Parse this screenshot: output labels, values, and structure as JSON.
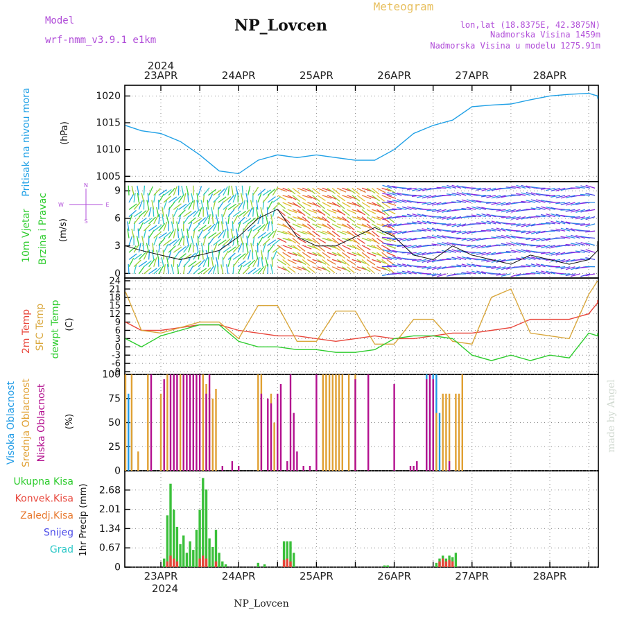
{
  "header": {
    "model_label": "Model",
    "model_name": "wrf-nmm_v3.9.1 e1km",
    "station_title": "NP_Lovcen",
    "meteogram_label": "Meteogram",
    "lonlat": "lon,lat (18.8375E, 42.3875N)",
    "altitude": "Nadmorska Visina 1459m",
    "model_altitude": "Nadmorska Visina u modelu 1275.91m",
    "year": "2024",
    "watermark": "made by Angel",
    "footer_station": "NP_Lovcen"
  },
  "dates": [
    "23APR",
    "24APR",
    "25APR",
    "26APR",
    "27APR",
    "28APR"
  ],
  "colors": {
    "pressure": "#1fa0e6",
    "t2m": "#e8453a",
    "sfc": "#d9a73c",
    "dewpt": "#2ecc2e",
    "cloud_high": "#1f9be6",
    "cloud_mid": "#e0a032",
    "cloud_low": "#b3108f",
    "precip_total": "#3ac03a",
    "precip_conv": "#e8453a"
  },
  "panels": {
    "pressure": {
      "label1": "Pritisak na nivou mora",
      "label2": "(hPa)",
      "ticks": [
        "1005",
        "1010",
        "1015",
        "1020"
      ]
    },
    "wind": {
      "label1": "10m Vjetar",
      "label2": "Brzina i Pravac",
      "label3": "(m/s)",
      "ticks": [
        "0",
        "3",
        "6",
        "9"
      ],
      "compass_n": "N",
      "compass_w": "W",
      "compass_e": "E",
      "compass_s": "S"
    },
    "temp": {
      "label1": "2m Temp",
      "label2": "SFC Temp",
      "label3": "dewpt Temp",
      "label4": "(C)",
      "ticks": [
        "-9",
        "-6",
        "-3",
        "0",
        "3",
        "6",
        "9",
        "12",
        "15",
        "18",
        "21",
        "24"
      ]
    },
    "cloud": {
      "label1": "Visoka Oblacnost",
      "label2": "Srednja Oblacnost",
      "label3": "Niska Oblacnost",
      "label4": "(%)",
      "ticks": [
        "0",
        "25",
        "50",
        "75",
        "100"
      ]
    },
    "precip": {
      "legend": [
        "Ukupna Kisa",
        "Konvek.Kisa",
        "Zaledj.Kisa",
        "Snijeg",
        "Grad"
      ],
      "legend_colors": [
        "#2ecc2e",
        "#e8453a",
        "#e87a30",
        "#4a4ae8",
        "#2ec8c8"
      ],
      "ylabel": "1hr Precip (mm)",
      "ticks": [
        "0",
        "0.67",
        "1.34",
        "2.01",
        "2.68"
      ]
    }
  },
  "chart_data": [
    {
      "type": "line",
      "title": "Pritisak na nivou mora",
      "ylabel": "(hPa)",
      "ylim": [
        1004,
        1022
      ],
      "x_unit": "hours from 23APR 00UTC",
      "series": [
        {
          "name": "Pritisak na nivou mora",
          "x": [
            -12,
            -6,
            0,
            6,
            12,
            18,
            24,
            30,
            36,
            42,
            48,
            54,
            60,
            66,
            72,
            78,
            84,
            90,
            96,
            102,
            108,
            114,
            120,
            126,
            132,
            138,
            140
          ],
          "values": [
            1014.5,
            1013.5,
            1013,
            1011.5,
            1009,
            1006,
            1005.5,
            1008,
            1009,
            1008.5,
            1009,
            1008.5,
            1008,
            1008,
            1010,
            1013,
            1014.5,
            1015.5,
            1018,
            1018.3,
            1018.5,
            1019.3,
            1020,
            1020.3,
            1020.5,
            1020,
            1019.5
          ]
        }
      ]
    },
    {
      "type": "line",
      "title": "10m Vjetar Brzina i Pravac",
      "ylabel": "(m/s)",
      "ylim": [
        -0.5,
        10
      ],
      "x_unit": "hours from 23APR 00UTC",
      "series": [
        {
          "name": "10m Vjetar",
          "x": [
            -12,
            -6,
            0,
            6,
            12,
            18,
            24,
            30,
            36,
            42,
            48,
            54,
            60,
            66,
            72,
            78,
            84,
            90,
            96,
            102,
            108,
            114,
            120,
            126,
            132,
            138,
            140
          ],
          "values": [
            3,
            2.5,
            2,
            1.5,
            2,
            2.5,
            4,
            6,
            7,
            4,
            3,
            3,
            4,
            5,
            4,
            2,
            1.5,
            3,
            2,
            1.5,
            1,
            2,
            1.5,
            1,
            1.5,
            2.5,
            3.5
          ]
        }
      ]
    },
    {
      "type": "line",
      "title": "2m Temp / SFC Temp / dewpt Temp",
      "ylabel": "(C)",
      "ylim": [
        -10,
        25
      ],
      "x_unit": "hours from 23APR 00UTC",
      "series": [
        {
          "name": "2m Temp",
          "x": [
            -12,
            -6,
            0,
            6,
            12,
            18,
            24,
            30,
            36,
            42,
            48,
            54,
            60,
            66,
            72,
            78,
            84,
            90,
            96,
            102,
            108,
            114,
            120,
            126,
            132,
            138,
            140
          ],
          "values": [
            9,
            6,
            6,
            7,
            8,
            8,
            6,
            5,
            4,
            4,
            3,
            2,
            3,
            4,
            3,
            3,
            4,
            5,
            5,
            6,
            7,
            10,
            10,
            10,
            12,
            16,
            17
          ]
        },
        {
          "name": "SFC Temp",
          "x": [
            -12,
            -6,
            0,
            6,
            12,
            18,
            24,
            30,
            36,
            42,
            48,
            54,
            60,
            66,
            72,
            78,
            84,
            90,
            96,
            102,
            108,
            114,
            120,
            126,
            132,
            138,
            140
          ],
          "values": [
            20,
            6,
            5,
            7,
            9,
            9,
            3,
            15,
            15,
            2,
            2,
            13,
            13,
            1,
            1,
            10,
            10,
            2,
            1,
            18,
            21,
            5,
            4,
            3,
            19,
            24,
            24
          ]
        },
        {
          "name": "dewpt Temp",
          "x": [
            -12,
            -6,
            0,
            6,
            12,
            18,
            24,
            30,
            36,
            42,
            48,
            54,
            60,
            66,
            72,
            78,
            84,
            90,
            96,
            102,
            108,
            114,
            120,
            126,
            132,
            138,
            140
          ],
          "values": [
            3,
            0,
            4,
            6,
            8,
            8,
            2,
            0,
            0,
            -1,
            -1,
            -2,
            -2,
            -1,
            3,
            4,
            4,
            3,
            -3,
            -5,
            -3,
            -5,
            -3,
            -4,
            5,
            4,
            5
          ]
        }
      ]
    },
    {
      "type": "bar",
      "title": "Oblacnost",
      "ylabel": "(%)",
      "ylim": [
        0,
        100
      ],
      "x_unit": "hours from 23APR 00UTC",
      "series": [
        {
          "name": "Visoka Oblacnost",
          "x": [
            -10,
            -9,
            82,
            83,
            84,
            85,
            86
          ],
          "values": [
            80,
            50,
            100,
            100,
            100,
            100,
            60
          ]
        },
        {
          "name": "Srednja Oblacnost",
          "x": [
            -11,
            -9,
            -7,
            -4,
            0,
            2,
            6,
            13,
            14,
            15,
            16,
            17,
            30,
            31,
            34,
            35,
            50,
            51,
            52,
            53,
            54,
            55,
            56,
            58,
            60,
            85,
            87,
            88,
            89,
            91,
            92,
            93
          ],
          "values": [
            100,
            100,
            20,
            100,
            80,
            100,
            100,
            100,
            90,
            80,
            75,
            85,
            100,
            100,
            80,
            50,
            100,
            100,
            100,
            100,
            100,
            100,
            100,
            100,
            100,
            60,
            80,
            80,
            80,
            80,
            80,
            100
          ]
        },
        {
          "name": "Niska Oblacnost",
          "x": [
            -3,
            1,
            3,
            4,
            5,
            7,
            8,
            9,
            10,
            11,
            12,
            14,
            15,
            19,
            22,
            24,
            31,
            33,
            34,
            36,
            37,
            39,
            40,
            41,
            42,
            44,
            46,
            48,
            60,
            64,
            72,
            77,
            78,
            79,
            82,
            83,
            84,
            89
          ],
          "values": [
            100,
            95,
            100,
            100,
            100,
            100,
            100,
            100,
            100,
            100,
            100,
            80,
            100,
            5,
            10,
            5,
            80,
            75,
            70,
            80,
            90,
            10,
            100,
            60,
            20,
            5,
            5,
            100,
            95,
            100,
            90,
            5,
            5,
            10,
            95,
            100,
            95,
            10
          ]
        }
      ]
    },
    {
      "type": "bar",
      "title": "1hr Precip",
      "ylabel": "1hr Precip (mm)",
      "ylim": [
        0,
        3.35
      ],
      "x_unit": "hours from 23APR 00UTC",
      "series": [
        {
          "name": "Ukupna Kisa",
          "x": [
            1,
            2,
            3,
            4,
            5,
            6,
            7,
            8,
            9,
            10,
            11,
            12,
            13,
            14,
            15,
            16,
            17,
            18,
            19,
            20,
            30,
            32,
            38,
            39,
            40,
            41,
            69,
            70,
            85,
            86,
            87,
            88,
            89,
            90,
            91
          ],
          "values": [
            0.3,
            1.8,
            2.9,
            2.0,
            1.4,
            0.8,
            1.1,
            0.5,
            0.9,
            0.6,
            1.3,
            2.0,
            3.1,
            2.7,
            1.0,
            0.7,
            1.3,
            0.5,
            0.2,
            0.1,
            0.15,
            0.1,
            0.9,
            0.9,
            0.9,
            0.5,
            0.06,
            0.06,
            0.15,
            0.3,
            0.4,
            0.3,
            0.4,
            0.35,
            0.5
          ]
        },
        {
          "name": "Konvek.Kisa",
          "x": [
            2,
            3,
            4,
            5,
            12,
            13,
            14,
            17,
            38,
            39,
            40,
            86,
            87,
            88,
            89,
            90
          ],
          "values": [
            0.2,
            0.4,
            0.3,
            0.2,
            0.3,
            0.4,
            0.3,
            0.2,
            0.25,
            0.3,
            0.2,
            0.2,
            0.3,
            0.2,
            0.25,
            0.2
          ]
        }
      ]
    }
  ]
}
